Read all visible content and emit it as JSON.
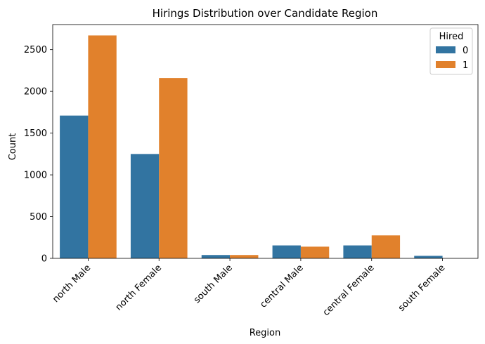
{
  "chart_data": {
    "type": "bar",
    "title": "Hirings Distribution over Candidate Region",
    "xlabel": "Region",
    "ylabel": "Count",
    "categories": [
      "north Male",
      "north Female",
      "south Male",
      "central Male",
      "central Female",
      "south Female"
    ],
    "series": [
      {
        "name": "0",
        "color": "#3274a1",
        "values": [
          1710,
          1250,
          40,
          155,
          155,
          30
        ]
      },
      {
        "name": "1",
        "color": "#e1812c",
        "values": [
          2670,
          2160,
          40,
          140,
          275,
          0
        ]
      }
    ],
    "ylim": [
      0,
      2800
    ],
    "yticks": [
      0,
      500,
      1000,
      1500,
      2000,
      2500
    ],
    "grid": false,
    "legend": {
      "title": "Hired",
      "placement": "top-right"
    }
  }
}
